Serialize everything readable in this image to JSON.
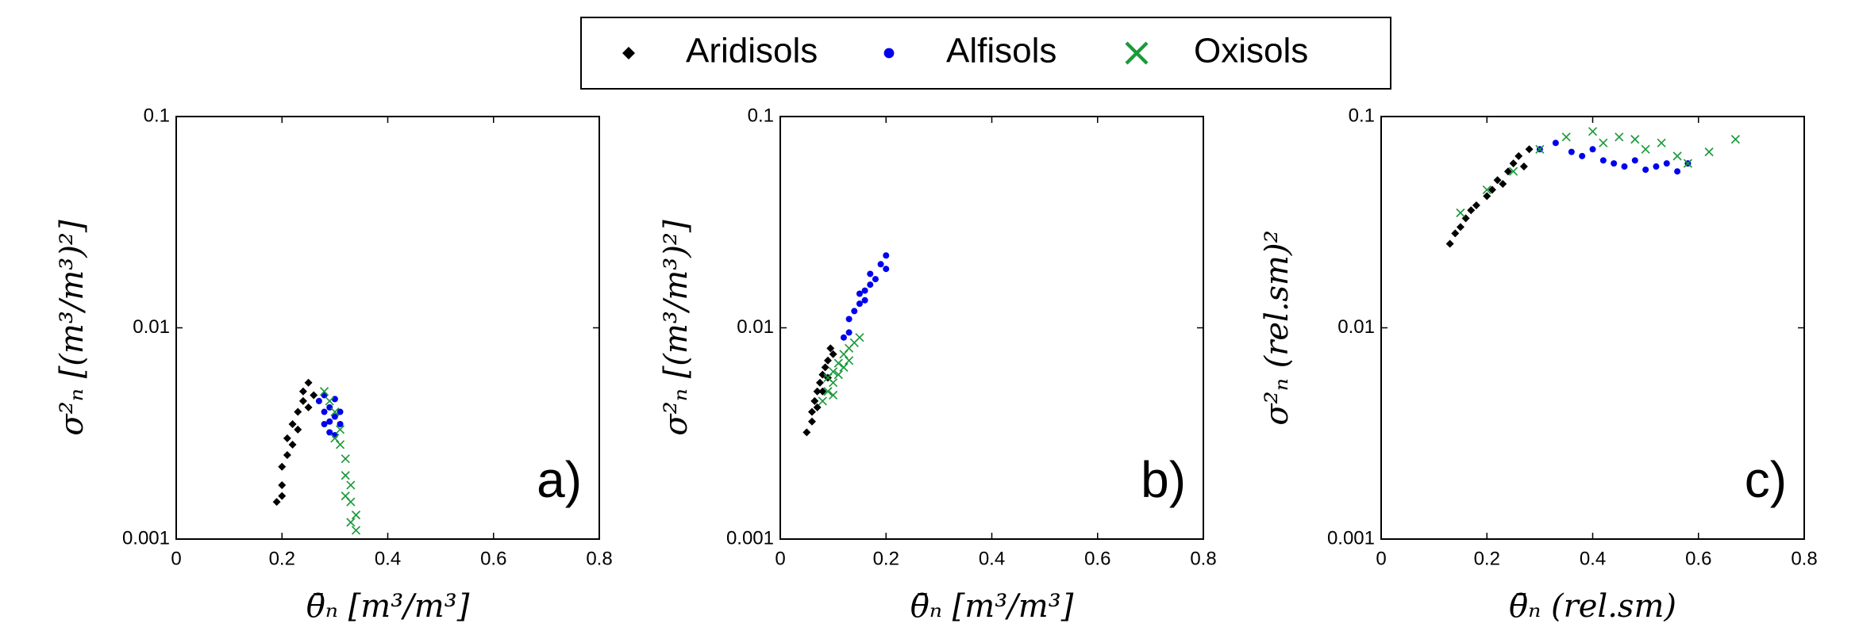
{
  "chart_data": [
    {
      "type": "scatter",
      "panel_label": "a)",
      "xlabel": "θ̄ₙ [m³/m³]",
      "ylabel": "σ²ₙ [(m³/m³)²]",
      "xlim": [
        0,
        0.8
      ],
      "xticks": [
        0,
        0.2,
        0.4,
        0.6,
        0.8
      ],
      "ylim": [
        0.001,
        0.1
      ],
      "yticks": [
        0.001,
        0.01,
        0.1
      ],
      "ylog": true,
      "series": [
        {
          "name": "Aridisols",
          "color": "#000000",
          "marker": "diamond",
          "x": [
            0.19,
            0.2,
            0.2,
            0.21,
            0.21,
            0.22,
            0.22,
            0.23,
            0.23,
            0.24,
            0.24,
            0.25,
            0.25,
            0.26,
            0.2
          ],
          "y": [
            0.0015,
            0.0018,
            0.0022,
            0.0025,
            0.003,
            0.0028,
            0.0035,
            0.004,
            0.0033,
            0.0045,
            0.005,
            0.0055,
            0.0042,
            0.0048,
            0.0016
          ]
        },
        {
          "name": "Alfisols",
          "color": "#0000ee",
          "marker": "dot",
          "x": [
            0.27,
            0.28,
            0.28,
            0.29,
            0.29,
            0.3,
            0.3,
            0.31,
            0.31,
            0.28,
            0.29,
            0.3
          ],
          "y": [
            0.0045,
            0.004,
            0.0035,
            0.0042,
            0.0032,
            0.0038,
            0.0046,
            0.004,
            0.0035,
            0.0048,
            0.0036,
            0.0031
          ]
        },
        {
          "name": "Oxisols",
          "color": "#1a9a3a",
          "marker": "x",
          "x": [
            0.28,
            0.29,
            0.3,
            0.31,
            0.31,
            0.32,
            0.32,
            0.33,
            0.33,
            0.34,
            0.34,
            0.33,
            0.32,
            0.3
          ],
          "y": [
            0.005,
            0.0045,
            0.004,
            0.0033,
            0.0028,
            0.0024,
            0.002,
            0.0018,
            0.0015,
            0.0013,
            0.0011,
            0.0012,
            0.0016,
            0.003
          ]
        }
      ]
    },
    {
      "type": "scatter",
      "panel_label": "b)",
      "xlabel": "θ̄ₙ [m³/m³]",
      "ylabel": "σ²ₙ [(m³/m³)²]",
      "xlim": [
        0,
        0.8
      ],
      "xticks": [
        0,
        0.2,
        0.4,
        0.6,
        0.8
      ],
      "ylim": [
        0.001,
        0.1
      ],
      "yticks": [
        0.001,
        0.01,
        0.1
      ],
      "ylog": true,
      "series": [
        {
          "name": "Aridisols",
          "color": "#000000",
          "marker": "diamond",
          "x": [
            0.05,
            0.06,
            0.06,
            0.065,
            0.07,
            0.07,
            0.075,
            0.08,
            0.08,
            0.085,
            0.09,
            0.09,
            0.1,
            0.095
          ],
          "y": [
            0.0032,
            0.0036,
            0.004,
            0.0045,
            0.005,
            0.0042,
            0.0055,
            0.006,
            0.005,
            0.0065,
            0.007,
            0.0058,
            0.0075,
            0.008
          ]
        },
        {
          "name": "Alfisols",
          "color": "#0000ee",
          "marker": "dot",
          "x": [
            0.12,
            0.13,
            0.13,
            0.14,
            0.15,
            0.15,
            0.16,
            0.17,
            0.17,
            0.18,
            0.19,
            0.2,
            0.2,
            0.16
          ],
          "y": [
            0.009,
            0.0095,
            0.011,
            0.012,
            0.013,
            0.0145,
            0.015,
            0.016,
            0.018,
            0.017,
            0.02,
            0.022,
            0.019,
            0.0135
          ]
        },
        {
          "name": "Oxisols",
          "color": "#1a9a3a",
          "marker": "x",
          "x": [
            0.08,
            0.09,
            0.1,
            0.1,
            0.11,
            0.11,
            0.12,
            0.12,
            0.13,
            0.13,
            0.14,
            0.15,
            0.1,
            0.09
          ],
          "y": [
            0.0045,
            0.005,
            0.0055,
            0.0048,
            0.006,
            0.0068,
            0.0065,
            0.0075,
            0.007,
            0.008,
            0.0085,
            0.009,
            0.0062,
            0.0058
          ]
        }
      ]
    },
    {
      "type": "scatter",
      "panel_label": "c)",
      "xlabel": "θ̄ₙ (rel.sm)",
      "ylabel": "σ²ₙ (rel.sm)²",
      "xlim": [
        0,
        0.8
      ],
      "xticks": [
        0,
        0.2,
        0.4,
        0.6,
        0.8
      ],
      "ylim": [
        0.001,
        0.1
      ],
      "yticks": [
        0.001,
        0.01,
        0.1
      ],
      "ylog": true,
      "series": [
        {
          "name": "Aridisols",
          "color": "#000000",
          "marker": "diamond",
          "x": [
            0.13,
            0.14,
            0.15,
            0.16,
            0.17,
            0.18,
            0.2,
            0.21,
            0.22,
            0.23,
            0.24,
            0.25,
            0.26,
            0.27,
            0.28
          ],
          "y": [
            0.025,
            0.028,
            0.03,
            0.033,
            0.036,
            0.038,
            0.042,
            0.045,
            0.05,
            0.048,
            0.055,
            0.06,
            0.065,
            0.058,
            0.07
          ]
        },
        {
          "name": "Alfisols",
          "color": "#0000ee",
          "marker": "dot",
          "x": [
            0.3,
            0.33,
            0.36,
            0.38,
            0.4,
            0.42,
            0.44,
            0.46,
            0.48,
            0.5,
            0.52,
            0.54,
            0.56,
            0.58
          ],
          "y": [
            0.07,
            0.075,
            0.068,
            0.065,
            0.07,
            0.062,
            0.06,
            0.058,
            0.062,
            0.056,
            0.058,
            0.06,
            0.055,
            0.06
          ]
        },
        {
          "name": "Oxisols",
          "color": "#1a9a3a",
          "marker": "x",
          "x": [
            0.15,
            0.2,
            0.25,
            0.3,
            0.35,
            0.4,
            0.42,
            0.45,
            0.48,
            0.5,
            0.53,
            0.56,
            0.58,
            0.62,
            0.67
          ],
          "y": [
            0.035,
            0.045,
            0.055,
            0.07,
            0.08,
            0.085,
            0.075,
            0.08,
            0.078,
            0.07,
            0.075,
            0.065,
            0.06,
            0.068,
            0.078
          ]
        }
      ]
    }
  ]
}
